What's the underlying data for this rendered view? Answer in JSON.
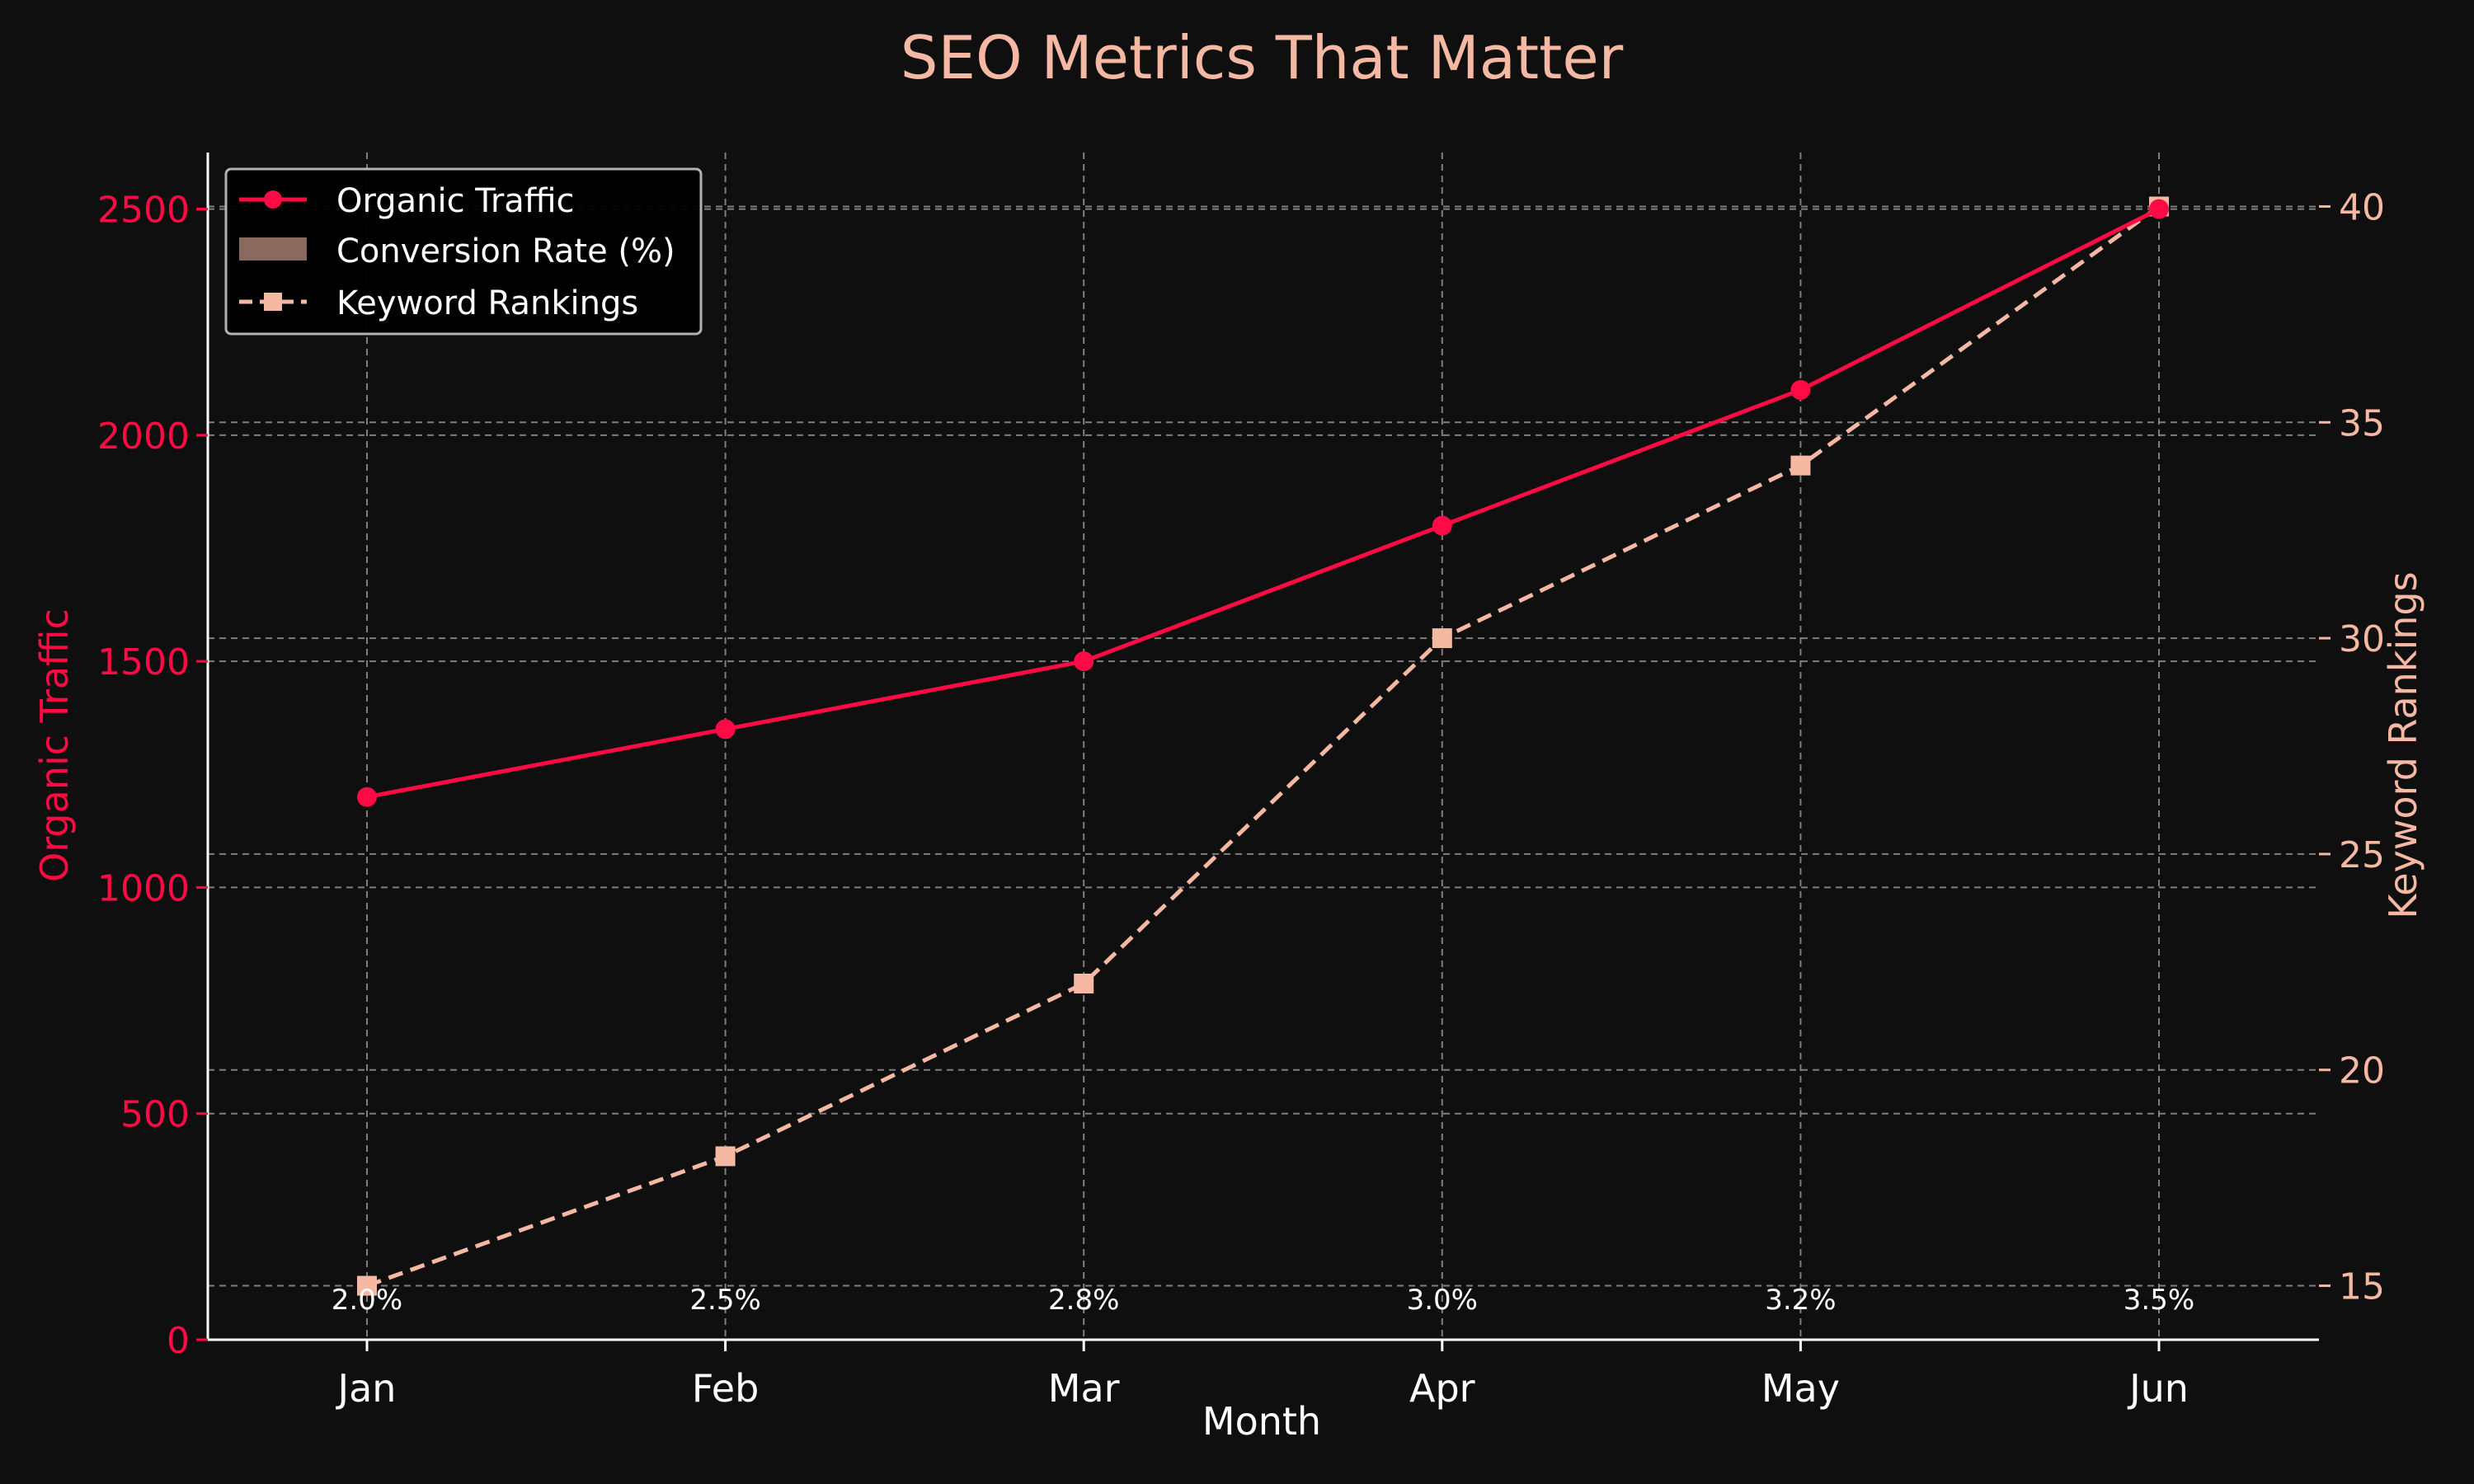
{
  "colors": {
    "background": "#0f0f0f",
    "traffic": "#ff0a45",
    "rankings": "#f5b8a3",
    "conversion": "#8a6a5e",
    "axis": "#ffffff",
    "grid": "#9a9a9a",
    "text": "#ffffff"
  },
  "chart_data": {
    "type": "line",
    "title": "SEO Metrics That Matter",
    "xlabel": "Month",
    "ylabel": "Organic Traffic",
    "y2label": "Keyword Rankings",
    "categories": [
      "Jan",
      "Feb",
      "Mar",
      "Apr",
      "May",
      "Jun"
    ],
    "ylim": [
      0,
      2625
    ],
    "y2lim": [
      13.75,
      41.25
    ],
    "yticks": [
      0,
      500,
      1000,
      1500,
      2000,
      2500
    ],
    "y2ticks": [
      15,
      20,
      25,
      30,
      35,
      40
    ],
    "grid": true,
    "legend": "top-left",
    "series": [
      {
        "name": "Organic Traffic",
        "axis": "left",
        "style": "solid-circle",
        "values": [
          1200,
          1350,
          1500,
          1800,
          2100,
          2500
        ]
      },
      {
        "name": "Conversion Rate (%)",
        "axis": "none",
        "style": "bar-label",
        "values": [
          2.0,
          2.5,
          2.8,
          3.0,
          3.2,
          3.5
        ],
        "labels": [
          "2.0%",
          "2.5%",
          "2.8%",
          "3.0%",
          "3.2%",
          "3.5%"
        ]
      },
      {
        "name": "Keyword Rankings",
        "axis": "right",
        "style": "dashed-square",
        "values": [
          15,
          18,
          22,
          30,
          34,
          40
        ]
      }
    ]
  }
}
